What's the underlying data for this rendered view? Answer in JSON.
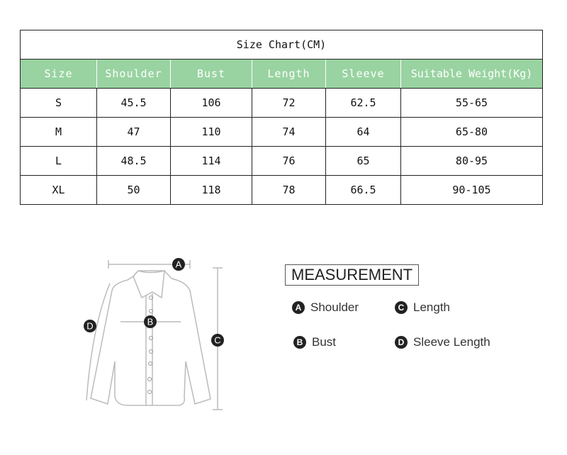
{
  "table": {
    "title": "Size Chart(CM)",
    "headers": [
      "Size",
      "Shoulder",
      "Bust",
      "Length",
      "Sleeve",
      "Suitable Weight(Kg)"
    ],
    "rows": [
      [
        "S",
        "45.5",
        "106",
        "72",
        "62.5",
        "55-65"
      ],
      [
        "M",
        "47",
        "110",
        "74",
        "64",
        "65-80"
      ],
      [
        "L",
        "48.5",
        "114",
        "76",
        "65",
        "80-95"
      ],
      [
        "XL",
        "50",
        "118",
        "78",
        "66.5",
        "90-105"
      ]
    ]
  },
  "diagram": {
    "labels": [
      "A",
      "B",
      "C",
      "D"
    ]
  },
  "measurement": {
    "title": "MEASUREMENT",
    "items": [
      {
        "key": "A",
        "label": "Shoulder"
      },
      {
        "key": "C",
        "label": "Length"
      },
      {
        "key": "B",
        "label": "Bust"
      },
      {
        "key": "D",
        "label": "Sleeve Length"
      }
    ]
  }
}
